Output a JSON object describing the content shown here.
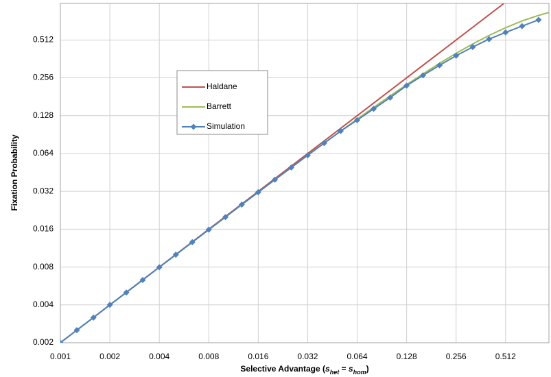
{
  "chart_data": {
    "type": "line",
    "xlabel": [
      "Selective Advantage (",
      "s",
      "het",
      " = ",
      "s",
      "hom",
      ")"
    ],
    "ylabel": "Fixation Probability",
    "xscale": "log2",
    "yscale": "log2",
    "xlim": [
      0.001,
      0.94
    ],
    "ylim": [
      0.002,
      1
    ],
    "xticks": [
      0.001,
      0.002,
      0.004,
      0.008,
      0.016,
      0.032,
      0.064,
      0.128,
      0.256,
      0.512
    ],
    "yticks": [
      0.002,
      0.004,
      0.008,
      0.016,
      0.032,
      0.064,
      0.128,
      0.256,
      0.512
    ],
    "grid": true,
    "series": [
      {
        "name": "Haldane",
        "color": "#c0504d",
        "x": [
          0.001,
          0.5
        ],
        "values": [
          0.002,
          1
        ]
      },
      {
        "name": "Barrett",
        "color": "#9bbb59",
        "x": [
          0.001,
          0.00126,
          0.00159,
          0.002,
          0.00252,
          0.00317,
          0.004,
          0.00504,
          0.00635,
          0.008,
          0.0101,
          0.0127,
          0.016,
          0.0202,
          0.0254,
          0.032,
          0.0403,
          0.0508,
          0.064,
          0.0806,
          0.1016,
          0.128,
          0.161,
          0.203,
          0.256,
          0.323,
          0.406,
          0.512,
          0.645,
          0.813,
          0.94
        ],
        "values": [
          0.002,
          0.00252,
          0.00317,
          0.004,
          0.00502,
          0.00631,
          0.00797,
          0.01003,
          0.01262,
          0.01587,
          0.01996,
          0.0251,
          0.0315,
          0.0396,
          0.0495,
          0.062,
          0.0774,
          0.0966,
          0.12,
          0.149,
          0.184,
          0.226,
          0.275,
          0.334,
          0.401,
          0.476,
          0.556,
          0.641,
          0.725,
          0.803,
          0.847
        ]
      },
      {
        "name": "Simulation",
        "color": "#4f81bd",
        "marker": "diamond",
        "x": [
          0.001,
          0.00126,
          0.00159,
          0.002,
          0.00252,
          0.00317,
          0.004,
          0.00504,
          0.00635,
          0.008,
          0.0101,
          0.0127,
          0.016,
          0.0202,
          0.0254,
          0.032,
          0.0403,
          0.0508,
          0.064,
          0.0806,
          0.1016,
          0.128,
          0.161,
          0.203,
          0.256,
          0.323,
          0.406,
          0.512,
          0.645,
          0.813
        ],
        "values": [
          0.002,
          0.00252,
          0.00317,
          0.004,
          0.00502,
          0.00631,
          0.00797,
          0.01003,
          0.01262,
          0.01587,
          0.01996,
          0.0251,
          0.0315,
          0.0396,
          0.0495,
          0.062,
          0.0774,
          0.0966,
          0.118,
          0.145,
          0.178,
          0.222,
          0.268,
          0.322,
          0.384,
          0.45,
          0.52,
          0.588,
          0.66,
          0.74
        ]
      }
    ]
  }
}
